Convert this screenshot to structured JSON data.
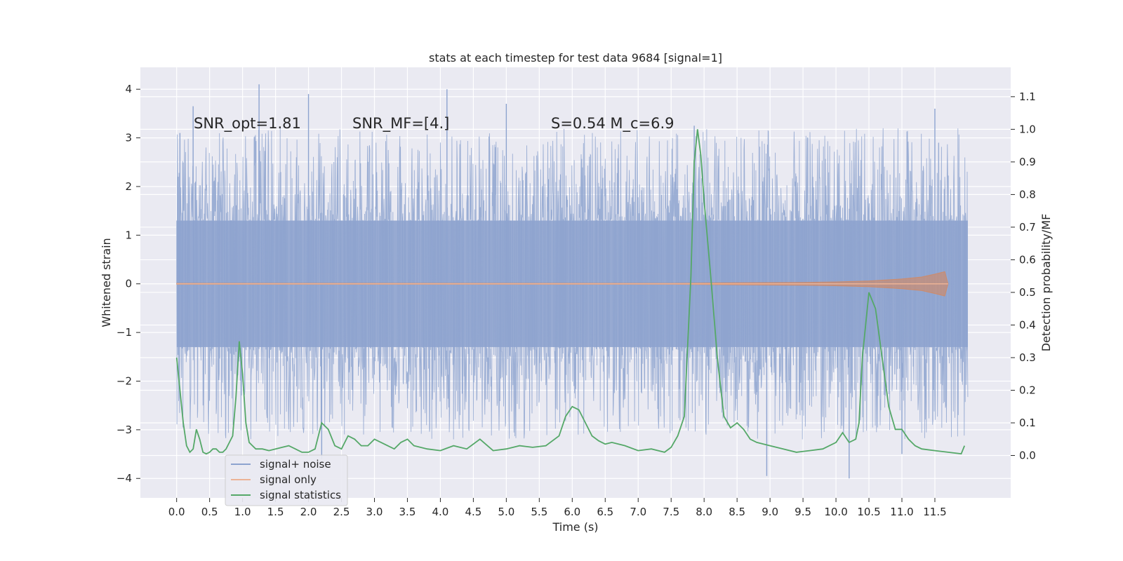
{
  "chart_data": {
    "type": "line",
    "title": "stats at each timestep for test data 9684 [signal=1]",
    "xlabel": "Time (s)",
    "ylabel_left": "Whitened strain",
    "ylabel_right": "Detection probability/MF",
    "xlim": [
      -0.55,
      12.65
    ],
    "ylim_left": [
      -4.4,
      4.45
    ],
    "ylim_right": [
      -0.13,
      1.19
    ],
    "xticks": [
      0.0,
      0.5,
      1.0,
      1.5,
      2.0,
      2.5,
      3.0,
      3.5,
      4.0,
      4.5,
      5.0,
      5.5,
      6.0,
      6.5,
      7.0,
      7.5,
      8.0,
      8.5,
      9.0,
      9.5,
      10.0,
      10.5,
      11.0,
      11.5
    ],
    "xtick_labels": [
      "0.0",
      "0.5",
      "1.0",
      "1.5",
      "2.0",
      "2.5",
      "3.0",
      "3.5",
      "4.0",
      "4.5",
      "5.0",
      "5.5",
      "6.0",
      "6.5",
      "7.0",
      "7.5",
      "8.0",
      "8.5",
      "9.0",
      "9.5",
      "10.0",
      "10.5",
      "11.0",
      "11.5"
    ],
    "yticks_left": [
      -4,
      -3,
      -2,
      -1,
      0,
      1,
      2,
      3,
      4
    ],
    "ytick_labels_left": [
      "−4",
      "−3",
      "−2",
      "−1",
      "0",
      "1",
      "2",
      "3",
      "4"
    ],
    "yticks_right": [
      0.0,
      0.1,
      0.2,
      0.3,
      0.4,
      0.5,
      0.6,
      0.7,
      0.8,
      0.9,
      1.0,
      1.1
    ],
    "ytick_labels_right": [
      "0.0",
      "0.1",
      "0.2",
      "0.3",
      "0.4",
      "0.5",
      "0.6",
      "0.7",
      "0.8",
      "0.9",
      "1.0",
      "1.1"
    ],
    "grid": true,
    "legend_position": "lower-left",
    "annotations": [
      {
        "text": "SNR_opt=1.81",
        "x": 0.2,
        "y": 3.25
      },
      {
        "text": "SNR_MF=[4.]",
        "x": 2.6,
        "y": 3.25
      },
      {
        "text": "S=0.54   M_c=6.9",
        "x": 5.6,
        "y": 3.25
      }
    ],
    "series": [
      {
        "name": "signal+ noise",
        "axis": "left",
        "color": "#4c72b0",
        "description_values": {
          "x_range": [
            0.0,
            12.0
          ],
          "typical_envelope": [
            -1.3,
            1.3
          ],
          "max": 4.1,
          "min": -4.0
        },
        "peaks": [
          [
            0.05,
            3.1
          ],
          [
            0.25,
            3.65
          ],
          [
            1.25,
            4.1
          ],
          [
            2.0,
            3.9
          ],
          [
            4.1,
            4.0
          ],
          [
            5.0,
            3.7
          ],
          [
            7.85,
            3.25
          ],
          [
            11.5,
            3.6
          ],
          [
            8.95,
            -3.95
          ],
          [
            10.2,
            -4.0
          ],
          [
            2.2,
            -3.6
          ],
          [
            11.0,
            -3.5
          ]
        ]
      },
      {
        "name": "signal only",
        "axis": "left",
        "color": "#dd8452",
        "x": [
          0.0,
          7.5,
          8.5,
          9.5,
          10.0,
          10.5,
          11.0,
          11.3,
          11.5,
          11.65,
          11.7
        ],
        "amplitude": [
          0.01,
          0.01,
          0.02,
          0.03,
          0.04,
          0.06,
          0.1,
          0.14,
          0.2,
          0.25,
          0.0
        ]
      },
      {
        "name": "signal statistics",
        "axis": "right",
        "color": "#55a868",
        "x": [
          0.0,
          0.05,
          0.1,
          0.15,
          0.2,
          0.25,
          0.3,
          0.35,
          0.4,
          0.45,
          0.5,
          0.55,
          0.6,
          0.65,
          0.7,
          0.75,
          0.8,
          0.85,
          0.9,
          0.95,
          1.0,
          1.05,
          1.1,
          1.15,
          1.2,
          1.3,
          1.4,
          1.5,
          1.6,
          1.7,
          1.8,
          1.9,
          2.0,
          2.1,
          2.2,
          2.3,
          2.4,
          2.5,
          2.55,
          2.6,
          2.7,
          2.8,
          2.9,
          3.0,
          3.1,
          3.2,
          3.3,
          3.4,
          3.5,
          3.6,
          3.8,
          4.0,
          4.2,
          4.4,
          4.6,
          4.8,
          5.0,
          5.2,
          5.4,
          5.6,
          5.8,
          5.9,
          6.0,
          6.1,
          6.2,
          6.3,
          6.4,
          6.5,
          6.6,
          6.8,
          7.0,
          7.2,
          7.4,
          7.5,
          7.6,
          7.7,
          7.8,
          7.85,
          7.9,
          7.95,
          8.0,
          8.1,
          8.2,
          8.3,
          8.4,
          8.5,
          8.6,
          8.7,
          8.8,
          9.0,
          9.2,
          9.4,
          9.6,
          9.8,
          10.0,
          10.1,
          10.2,
          10.3,
          10.35,
          10.4,
          10.45,
          10.5,
          10.6,
          10.7,
          10.8,
          10.9,
          11.0,
          11.1,
          11.2,
          11.3,
          11.5,
          11.7,
          11.9,
          11.95
        ],
        "values": [
          0.3,
          0.2,
          0.1,
          0.03,
          0.01,
          0.02,
          0.08,
          0.05,
          0.01,
          0.005,
          0.01,
          0.02,
          0.02,
          0.01,
          0.01,
          0.02,
          0.04,
          0.06,
          0.18,
          0.35,
          0.25,
          0.1,
          0.04,
          0.03,
          0.02,
          0.02,
          0.015,
          0.02,
          0.025,
          0.03,
          0.02,
          0.01,
          0.01,
          0.02,
          0.1,
          0.08,
          0.03,
          0.02,
          0.04,
          0.06,
          0.05,
          0.03,
          0.03,
          0.05,
          0.04,
          0.03,
          0.02,
          0.04,
          0.05,
          0.03,
          0.02,
          0.015,
          0.03,
          0.02,
          0.05,
          0.015,
          0.02,
          0.03,
          0.025,
          0.03,
          0.06,
          0.12,
          0.15,
          0.14,
          0.1,
          0.06,
          0.045,
          0.035,
          0.04,
          0.03,
          0.015,
          0.02,
          0.01,
          0.025,
          0.06,
          0.12,
          0.55,
          0.9,
          1.0,
          0.92,
          0.78,
          0.55,
          0.3,
          0.12,
          0.085,
          0.1,
          0.08,
          0.05,
          0.04,
          0.03,
          0.02,
          0.01,
          0.015,
          0.02,
          0.04,
          0.07,
          0.04,
          0.05,
          0.1,
          0.3,
          0.4,
          0.5,
          0.45,
          0.3,
          0.15,
          0.08,
          0.08,
          0.05,
          0.03,
          0.02,
          0.015,
          0.01,
          0.005,
          0.03
        ]
      }
    ]
  }
}
